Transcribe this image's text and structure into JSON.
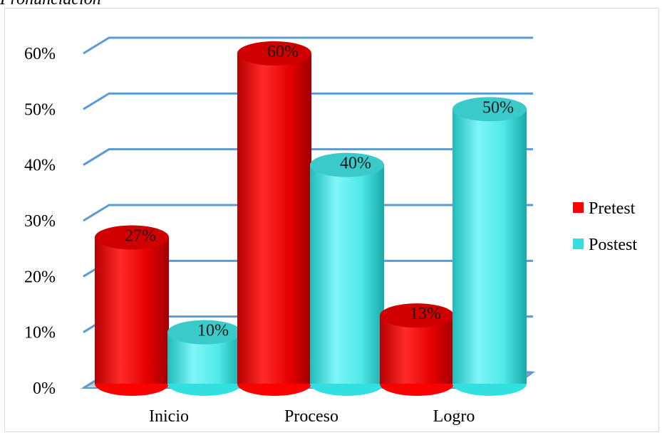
{
  "page": {
    "title_fragment": "Pronunciación"
  },
  "chart_data": {
    "type": "bar",
    "style": "3d-cylinder",
    "categories": [
      "Inicio",
      "Proceso",
      "Logro"
    ],
    "series": [
      {
        "name": "Pretest",
        "color": "#ff0000",
        "values": [
          27,
          60,
          13
        ],
        "labels": [
          "27%",
          "60%",
          "13%"
        ]
      },
      {
        "name": "Postest",
        "color": "#33e0e0",
        "values": [
          10,
          40,
          50
        ],
        "labels": [
          "10%",
          "40%",
          "50%"
        ]
      }
    ],
    "y_ticks": [
      "0%",
      "10%",
      "20%",
      "30%",
      "40%",
      "50%",
      "60%"
    ],
    "ylim": [
      0,
      60
    ],
    "grid": true,
    "grid_color": "#5b9bd5",
    "legend_position": "right"
  }
}
